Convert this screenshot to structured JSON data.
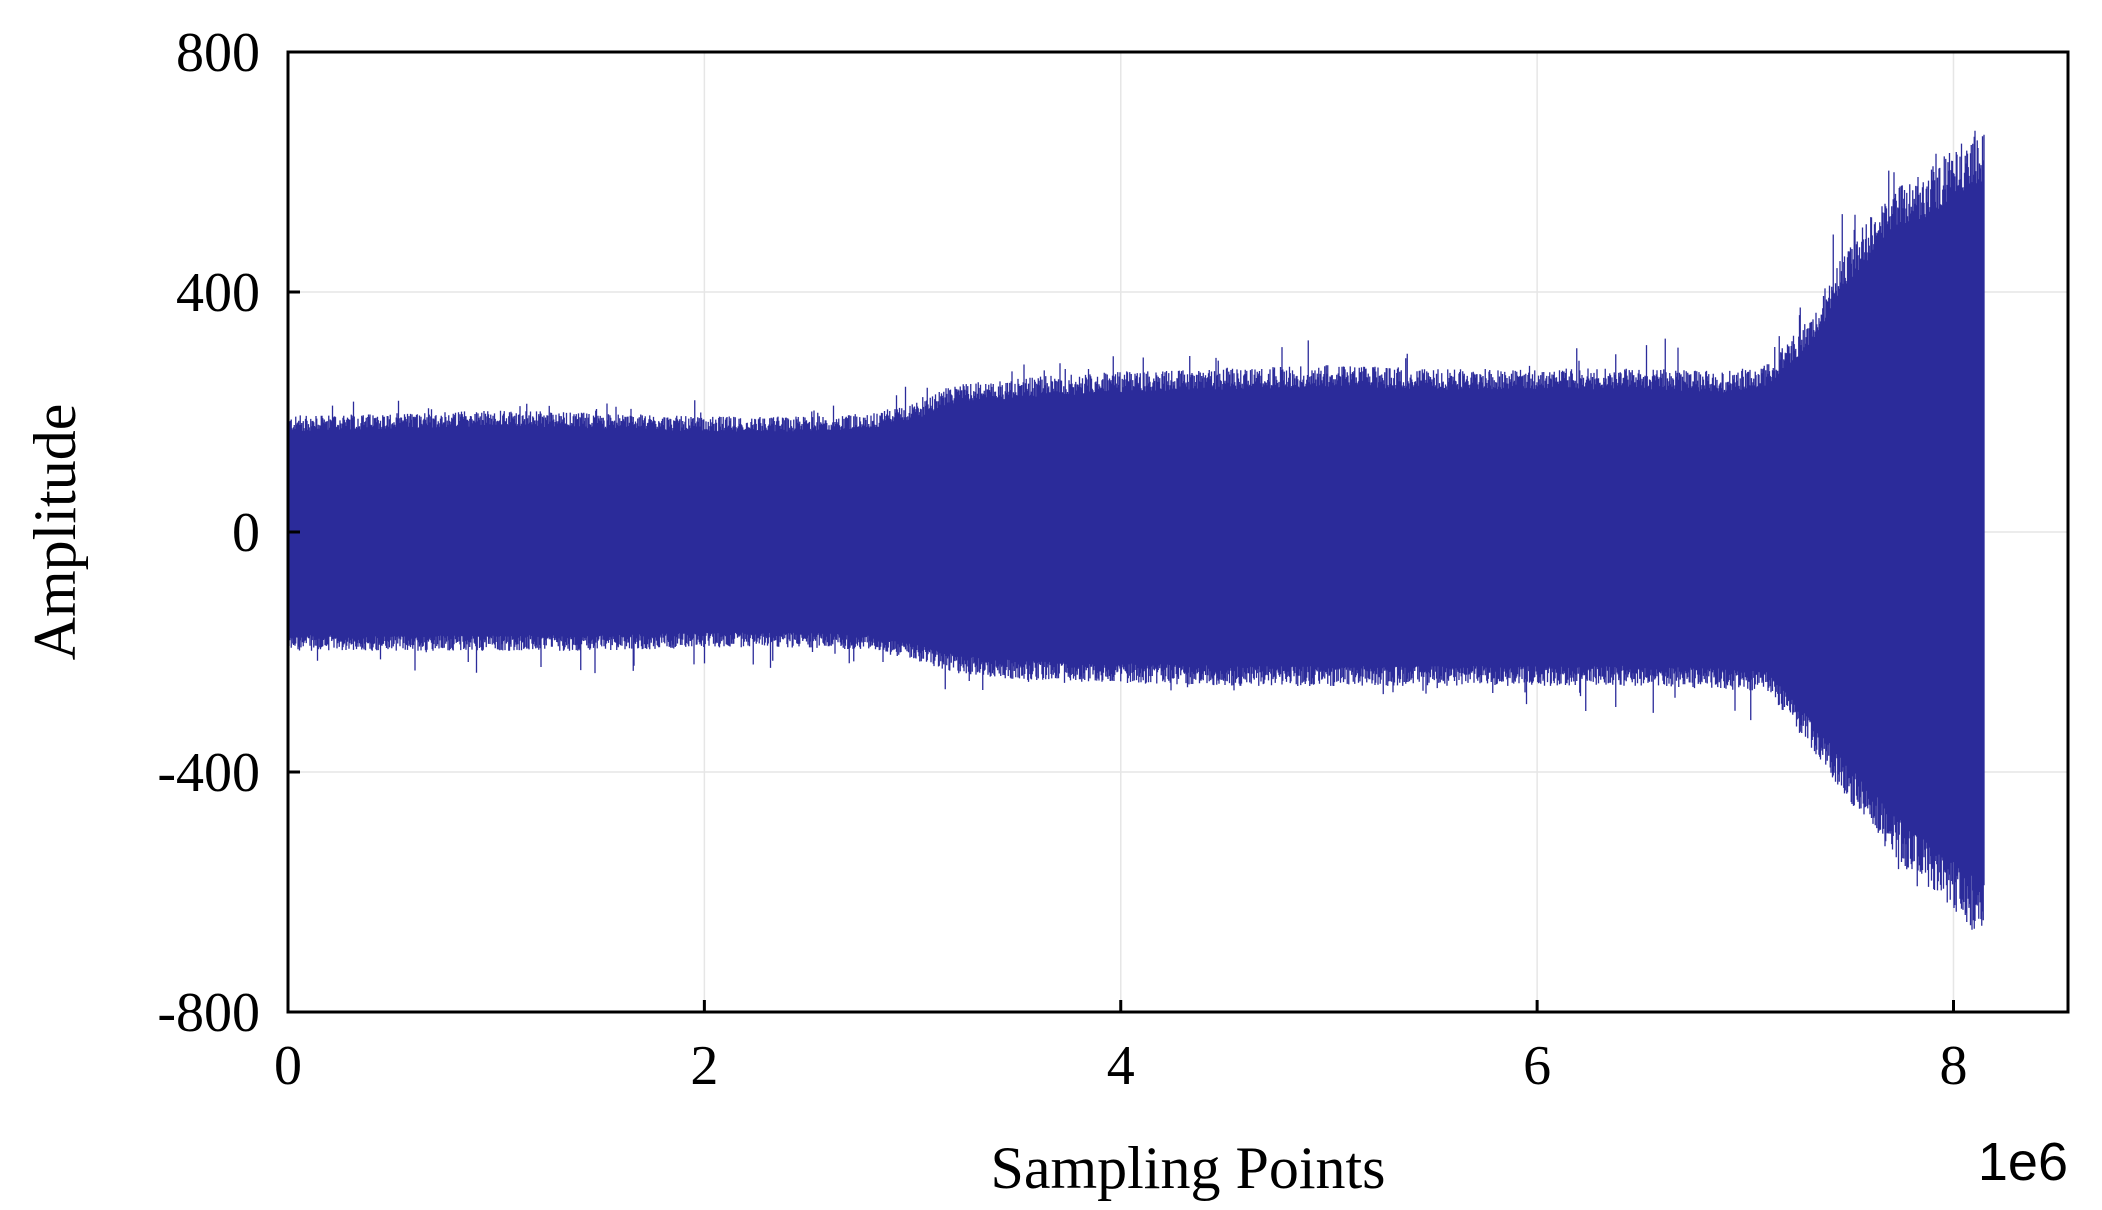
{
  "chart_data": {
    "type": "line",
    "title": "",
    "xlabel": "Sampling Points",
    "ylabel": "Amplitude",
    "x_offset_label": "1e6",
    "xlim": [
      0,
      8.55
    ],
    "ylim": [
      -800,
      800
    ],
    "x_ticks": [
      0,
      2,
      4,
      6,
      8
    ],
    "x_tick_labels": [
      "0",
      "2",
      "4",
      "6",
      "8"
    ],
    "y_ticks": [
      -800,
      -400,
      0,
      400,
      800
    ],
    "y_tick_labels": [
      "-800",
      "-400",
      "0",
      "400",
      "800"
    ],
    "grid": true,
    "legend": "none",
    "series": [
      {
        "color": "#2b2b9a",
        "envelope": {
          "x": [
            0,
            0.5,
            1.0,
            1.5,
            2.0,
            2.5,
            2.8,
            3.0,
            3.2,
            3.5,
            4.0,
            4.5,
            5.0,
            5.5,
            6.0,
            6.5,
            6.9,
            7.1,
            7.3,
            7.5,
            7.7,
            7.9,
            8.0,
            8.1,
            8.15
          ],
          "upper": [
            180,
            185,
            190,
            185,
            180,
            180,
            185,
            200,
            230,
            240,
            250,
            255,
            260,
            255,
            255,
            255,
            250,
            260,
            330,
            450,
            530,
            570,
            600,
            620,
            620
          ],
          "lower": [
            -185,
            -185,
            -185,
            -185,
            -180,
            -180,
            -185,
            -200,
            -220,
            -230,
            -235,
            -240,
            -240,
            -240,
            -240,
            -240,
            -245,
            -250,
            -330,
            -420,
            -500,
            -560,
            -590,
            -620,
            -620
          ],
          "spike_max": [
            230,
            220,
            220,
            225,
            230,
            215,
            220,
            260,
            285,
            300,
            300,
            290,
            330,
            290,
            300,
            350,
            280,
            300,
            400,
            560,
            650,
            650,
            690,
            690,
            690
          ],
          "spike_min": [
            -235,
            -230,
            -240,
            -240,
            -235,
            -225,
            -225,
            -255,
            -270,
            -260,
            -260,
            -270,
            -275,
            -270,
            -300,
            -300,
            -340,
            -310,
            -340,
            -450,
            -570,
            -620,
            -640,
            -680,
            -680
          ]
        }
      }
    ]
  }
}
